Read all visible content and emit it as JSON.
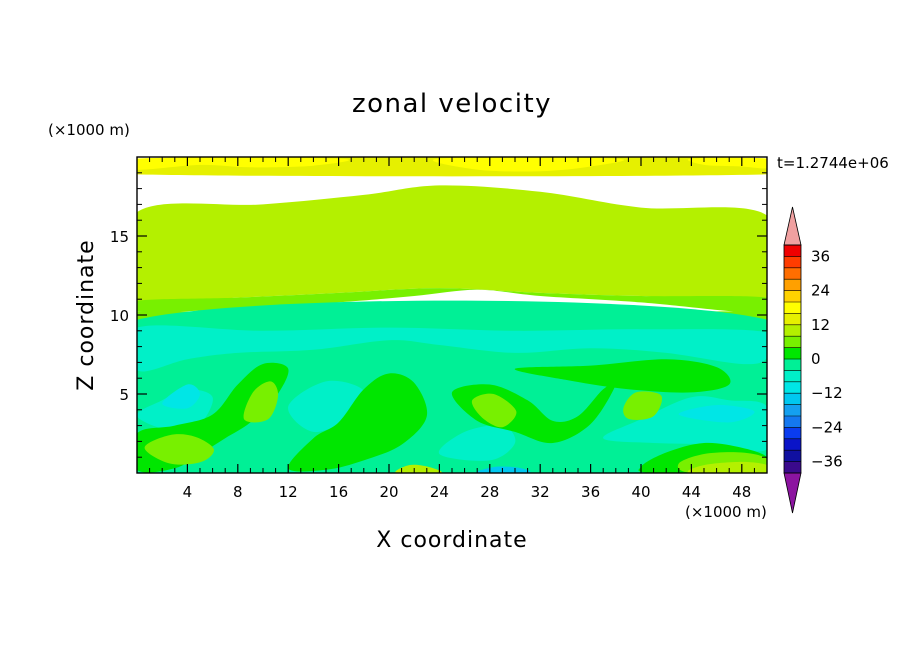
{
  "chart_data": {
    "type": "heatmap",
    "title": "zonal velocity",
    "xlabel": "X coordinate",
    "ylabel": "Z coordinate",
    "x_unit": "(×1000 m)",
    "y_unit": "(×1000 m)",
    "time_label": "t=1.2744e+06",
    "xlim": [
      0,
      50
    ],
    "ylim": [
      0,
      20
    ],
    "xticks": [
      4,
      8,
      12,
      16,
      20,
      24,
      28,
      32,
      36,
      40,
      44,
      48
    ],
    "yticks": [
      5,
      10,
      15
    ],
    "colorbar": {
      "levels": [
        -40,
        -36,
        -32,
        -28,
        -24,
        -20,
        -16,
        -12,
        -8,
        -4,
        0,
        4,
        8,
        12,
        16,
        20,
        24,
        28,
        32,
        36,
        40
      ],
      "colors": [
        "#3a0a8c",
        "#1010a0",
        "#0a14c8",
        "#0a3cf0",
        "#1478f0",
        "#14a0f0",
        "#00c8f0",
        "#00e6e6",
        "#00f0c8",
        "#00f096",
        "#00e600",
        "#78f000",
        "#b4f000",
        "#e6f000",
        "#ffff00",
        "#ffd200",
        "#ffa000",
        "#ff6e00",
        "#ff3c00",
        "#f00000"
      ],
      "under_color": "#8c14a0",
      "over_color": "#f0a0a0",
      "tick_labels": [
        "36",
        "24",
        "12",
        "0",
        "−12",
        "−24",
        "−36"
      ]
    },
    "regions": [
      {
        "level": 12,
        "points": [
          [
            0,
            18.9
          ],
          [
            50,
            18.9
          ],
          [
            50,
            19.9
          ],
          [
            0,
            19.9
          ]
        ]
      },
      {
        "level": 16,
        "points": [
          [
            0,
            19.2
          ],
          [
            5,
            19.5
          ],
          [
            9,
            19.35
          ],
          [
            14,
            19.45
          ],
          [
            16,
            19.9
          ],
          [
            0,
            19.9
          ]
        ]
      },
      {
        "level": 16,
        "points": [
          [
            24,
            19.9
          ],
          [
            27,
            19.2
          ],
          [
            32,
            19.1
          ],
          [
            36,
            19.4
          ],
          [
            38,
            19.9
          ]
        ]
      },
      {
        "level": 16,
        "points": [
          [
            44,
            19.9
          ],
          [
            45,
            19.5
          ],
          [
            48,
            19.4
          ],
          [
            50,
            19.3
          ],
          [
            50,
            19.9
          ]
        ]
      },
      {
        "level": 8,
        "points": [
          [
            0,
            10.9
          ],
          [
            8,
            11.1
          ],
          [
            16,
            11.4
          ],
          [
            24,
            11.7
          ],
          [
            32,
            11.4
          ],
          [
            40,
            11.2
          ],
          [
            50,
            11.1
          ],
          [
            50,
            16.3
          ],
          [
            40,
            16.8
          ],
          [
            32,
            17.8
          ],
          [
            24,
            18.2
          ],
          [
            18,
            17.6
          ],
          [
            10,
            17.0
          ],
          [
            0,
            16.5
          ]
        ]
      },
      {
        "level": 4,
        "points": [
          [
            0,
            10.2
          ],
          [
            8,
            10.4
          ],
          [
            16,
            10.8
          ],
          [
            22,
            11.2
          ],
          [
            27,
            11.6
          ],
          [
            32,
            11.2
          ],
          [
            40,
            10.8
          ],
          [
            50,
            10.1
          ],
          [
            50,
            11.1
          ],
          [
            40,
            11.2
          ],
          [
            32,
            11.4
          ],
          [
            24,
            11.7
          ],
          [
            16,
            11.4
          ],
          [
            8,
            11.1
          ],
          [
            0,
            10.9
          ]
        ]
      },
      {
        "level": 8,
        "points": [
          [
            6,
            14.2
          ],
          [
            12,
            14.6
          ],
          [
            20,
            15.1
          ],
          [
            28,
            15.3
          ],
          [
            34,
            14.7
          ],
          [
            40,
            14.1
          ],
          [
            43,
            13.9
          ],
          [
            41,
            13.6
          ],
          [
            34,
            13.9
          ],
          [
            26,
            14.3
          ],
          [
            18,
            14.1
          ],
          [
            10,
            13.9
          ]
        ]
      },
      {
        "level": 4,
        "points": [
          [
            0,
            9.7
          ],
          [
            50,
            9.7
          ],
          [
            50,
            10.2
          ],
          [
            0,
            10.2
          ]
        ]
      },
      {
        "level": -4,
        "points": [
          [
            0,
            0
          ],
          [
            50,
            0
          ],
          [
            50,
            9.7
          ],
          [
            0,
            9.7
          ]
        ]
      },
      {
        "level": -8,
        "points": [
          [
            0,
            6.5
          ],
          [
            4,
            7.2
          ],
          [
            8,
            7.6
          ],
          [
            14,
            7.8
          ],
          [
            20,
            8.4
          ],
          [
            24,
            8.1
          ],
          [
            30,
            7.6
          ],
          [
            36,
            7.9
          ],
          [
            42,
            7.6
          ],
          [
            48,
            6.9
          ],
          [
            50,
            7.3
          ],
          [
            50,
            8.9
          ],
          [
            40,
            9.1
          ],
          [
            30,
            9.0
          ],
          [
            20,
            9.2
          ],
          [
            10,
            9.0
          ],
          [
            0,
            9.2
          ]
        ]
      },
      {
        "level": -8,
        "points": [
          [
            37,
            2.2
          ],
          [
            40,
            3.4
          ],
          [
            44,
            4.8
          ],
          [
            47,
            4.6
          ],
          [
            50,
            4.2
          ],
          [
            50,
            1.5
          ],
          [
            46,
            1.8
          ],
          [
            41,
            1.9
          ]
        ]
      },
      {
        "level": -8,
        "points": [
          [
            0,
            3.6
          ],
          [
            2,
            4.6
          ],
          [
            4,
            5.3
          ],
          [
            6,
            4.8
          ],
          [
            5,
            3.1
          ],
          [
            3,
            2.6
          ]
        ]
      },
      {
        "level": -8,
        "points": [
          [
            12,
            4.2
          ],
          [
            15,
            5.8
          ],
          [
            18,
            5.2
          ],
          [
            17,
            3.6
          ],
          [
            14,
            2.6
          ]
        ]
      },
      {
        "level": -8,
        "points": [
          [
            24,
            1.2
          ],
          [
            26,
            2.6
          ],
          [
            29,
            3.0
          ],
          [
            30,
            1.9
          ],
          [
            28,
            0.8
          ]
        ]
      },
      {
        "level": -12,
        "points": [
          [
            2,
            4.4
          ],
          [
            4,
            5.6
          ],
          [
            5,
            5.0
          ],
          [
            4,
            4.1
          ]
        ]
      },
      {
        "level": -12,
        "points": [
          [
            43,
            3.7
          ],
          [
            46,
            4.3
          ],
          [
            49,
            3.9
          ],
          [
            47,
            3.2
          ]
        ]
      },
      {
        "level": 0,
        "points": [
          [
            0,
            2.5
          ],
          [
            3,
            3.0
          ],
          [
            6,
            3.7
          ],
          [
            8,
            5.6
          ],
          [
            10,
            6.9
          ],
          [
            12,
            6.6
          ],
          [
            11,
            4.8
          ],
          [
            9,
            3.2
          ],
          [
            7,
            2.2
          ],
          [
            5,
            1.2
          ],
          [
            3,
            0.3
          ],
          [
            0,
            0.2
          ]
        ]
      },
      {
        "level": 0,
        "points": [
          [
            12,
            0.3
          ],
          [
            14,
            2.2
          ],
          [
            16,
            3.2
          ],
          [
            18,
            5.3
          ],
          [
            20,
            6.3
          ],
          [
            22,
            5.7
          ],
          [
            23,
            3.6
          ],
          [
            21,
            1.8
          ],
          [
            18,
            0.8
          ],
          [
            15,
            0.2
          ]
        ]
      },
      {
        "level": 0,
        "points": [
          [
            25,
            5.1
          ],
          [
            28,
            5.6
          ],
          [
            31,
            4.6
          ],
          [
            33,
            3.3
          ],
          [
            35,
            3.6
          ],
          [
            37,
            5.3
          ],
          [
            38,
            5.6
          ],
          [
            36,
            3.1
          ],
          [
            33,
            1.9
          ],
          [
            30,
            2.6
          ],
          [
            27,
            3.3
          ]
        ]
      },
      {
        "level": 0,
        "points": [
          [
            30,
            6.6
          ],
          [
            36,
            6.8
          ],
          [
            42,
            7.2
          ],
          [
            46,
            6.7
          ],
          [
            47,
            5.6
          ],
          [
            44,
            5.1
          ],
          [
            39,
            5.3
          ],
          [
            34,
            5.9
          ]
        ]
      },
      {
        "level": 0,
        "points": [
          [
            40,
            0.4
          ],
          [
            42,
            1.3
          ],
          [
            45,
            1.9
          ],
          [
            48,
            1.6
          ],
          [
            50,
            1.0
          ],
          [
            50,
            0
          ],
          [
            41,
            0
          ]
        ]
      },
      {
        "level": 4,
        "points": [
          [
            8.5,
            3.4
          ],
          [
            9.2,
            5.1
          ],
          [
            10.6,
            5.8
          ],
          [
            11.2,
            4.9
          ],
          [
            10.4,
            3.4
          ]
        ]
      },
      {
        "level": 4,
        "points": [
          [
            26.6,
            4.6
          ],
          [
            28.3,
            5.0
          ],
          [
            30.1,
            3.9
          ],
          [
            29.0,
            2.9
          ],
          [
            27.4,
            3.5
          ]
        ]
      },
      {
        "level": 4,
        "points": [
          [
            38.6,
            4.1
          ],
          [
            39.6,
            5.1
          ],
          [
            41.6,
            4.9
          ],
          [
            41.0,
            3.6
          ],
          [
            39.1,
            3.4
          ]
        ]
      },
      {
        "level": 4,
        "points": [
          [
            0.6,
            1.6
          ],
          [
            2.6,
            2.4
          ],
          [
            4.6,
            2.3
          ],
          [
            6.1,
            1.5
          ],
          [
            5.1,
            0.7
          ],
          [
            2.6,
            0.6
          ]
        ]
      },
      {
        "level": 4,
        "points": [
          [
            43,
            0.6
          ],
          [
            45,
            1.2
          ],
          [
            48,
            1.3
          ],
          [
            50,
            0.9
          ],
          [
            50,
            0
          ],
          [
            44,
            0
          ]
        ]
      },
      {
        "level": 8,
        "points": [
          [
            44,
            0
          ],
          [
            45,
            0.5
          ],
          [
            48,
            0.7
          ],
          [
            50,
            0.5
          ],
          [
            50,
            0
          ]
        ]
      },
      {
        "level": 8,
        "points": [
          [
            20.6,
            0
          ],
          [
            21.6,
            0.5
          ],
          [
            23.1,
            0.4
          ],
          [
            24.1,
            0
          ]
        ]
      },
      {
        "level": -16,
        "points": [
          [
            27,
            0
          ],
          [
            28.5,
            0.4
          ],
          [
            30.5,
            0.3
          ],
          [
            31,
            0
          ]
        ]
      }
    ]
  }
}
